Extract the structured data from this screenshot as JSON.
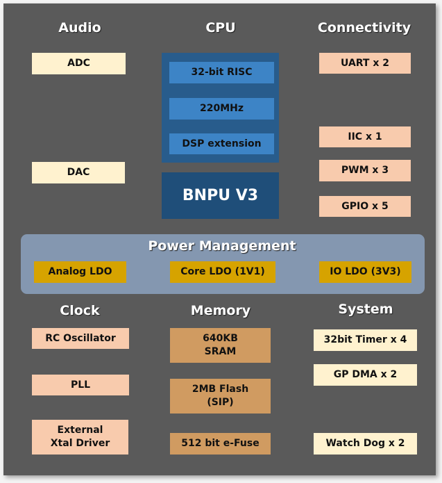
{
  "audio": {
    "title": "Audio",
    "items": [
      "ADC",
      "DAC"
    ]
  },
  "cpu": {
    "title": "CPU",
    "items": [
      "32-bit RISC",
      "220MHz",
      "DSP extension"
    ],
    "npu": "BNPU V3"
  },
  "connectivity": {
    "title": "Connectivity",
    "items": [
      "UART x 2",
      "IIC x 1",
      "PWM x 3",
      "GPIO x 5"
    ]
  },
  "power": {
    "title": "Power Management",
    "items": [
      "Analog LDO",
      "Core LDO (1V1)",
      "IO LDO (3V3)"
    ]
  },
  "clock": {
    "title": "Clock",
    "items": [
      "RC Oscillator",
      "PLL",
      "External\nXtal Driver"
    ]
  },
  "memory": {
    "title": "Memory",
    "items": [
      "640KB\nSRAM",
      "2MB Flash\n(SIP)",
      "512 bit e-Fuse"
    ]
  },
  "system": {
    "title": "System",
    "items": [
      "32bit Timer x 4",
      "GP DMA x 2",
      "Watch Dog x 2"
    ]
  },
  "colors": {
    "background": "#5a5a5a",
    "audio_system": "#fff2cf",
    "clock_connectivity": "#f8cbad",
    "cpu": "#285c8c",
    "cpu_item": "#3d84c6",
    "npu": "#1f4e79",
    "power": "#8497b0",
    "ldo": "#d6a300",
    "memory": "#d09b61"
  }
}
